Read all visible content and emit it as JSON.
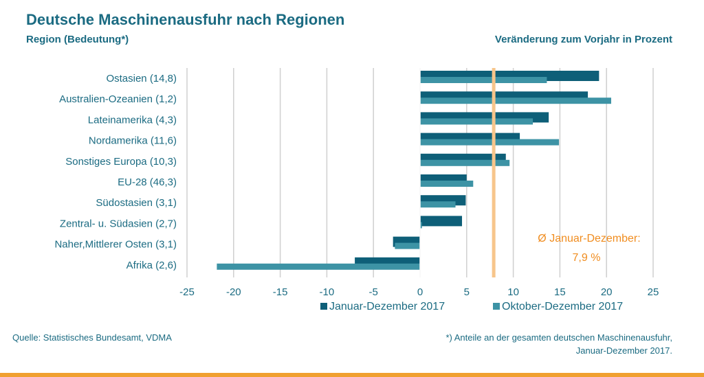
{
  "header": {
    "title": "Deutsche Maschinenausfuhr nach Regionen",
    "subtitle": "Region (Bedeutung*)",
    "right_subtitle": "Veränderung zum Vorjahr in Prozent"
  },
  "footer": {
    "source": "Quelle: Statistisches Bundesamt, VDMA",
    "footnote_line1": "*) Anteile an der gesamten deutschen Maschinenausfuhr,",
    "footnote_line2": "Januar-Dezember 2017."
  },
  "chart_data": {
    "type": "bar",
    "orientation": "horizontal",
    "categories": [
      "Ostasien (14,8)",
      "Australien-Ozeanien (1,2)",
      "Lateinamerika (4,3)",
      "Nordamerika (11,6)",
      "Sonstiges Europa (10,3)",
      "EU-28 (46,3)",
      "Südostasien (3,1)",
      "Zentral- u. Südasien (2,7)",
      "Naher,Mittlerer Osten (3,1)",
      "Afrika (2,6)"
    ],
    "series": [
      {
        "name": "Januar-Dezember 2017",
        "color": "#0e5f78",
        "values": [
          19.2,
          18.0,
          13.8,
          10.7,
          9.2,
          5.0,
          4.9,
          4.5,
          -2.9,
          -7.0
        ]
      },
      {
        "name": "Oktober-Dezember 2017",
        "color": "#3d93a5",
        "values": [
          13.6,
          20.5,
          12.1,
          14.9,
          9.6,
          5.7,
          3.8,
          0.2,
          -2.7,
          -21.8
        ]
      }
    ],
    "xlim": [
      -25,
      25
    ],
    "xticks": [
      -25,
      -20,
      -15,
      -10,
      -5,
      0,
      5,
      10,
      15,
      20,
      25
    ],
    "grid": true,
    "legend_position": "bottom",
    "reference_line": {
      "value": 7.9,
      "color": "#f7c58b",
      "label_line1": "Ø Januar-Dezember:",
      "label_line2": "7,9 %",
      "label_color": "#f08c1e"
    }
  }
}
